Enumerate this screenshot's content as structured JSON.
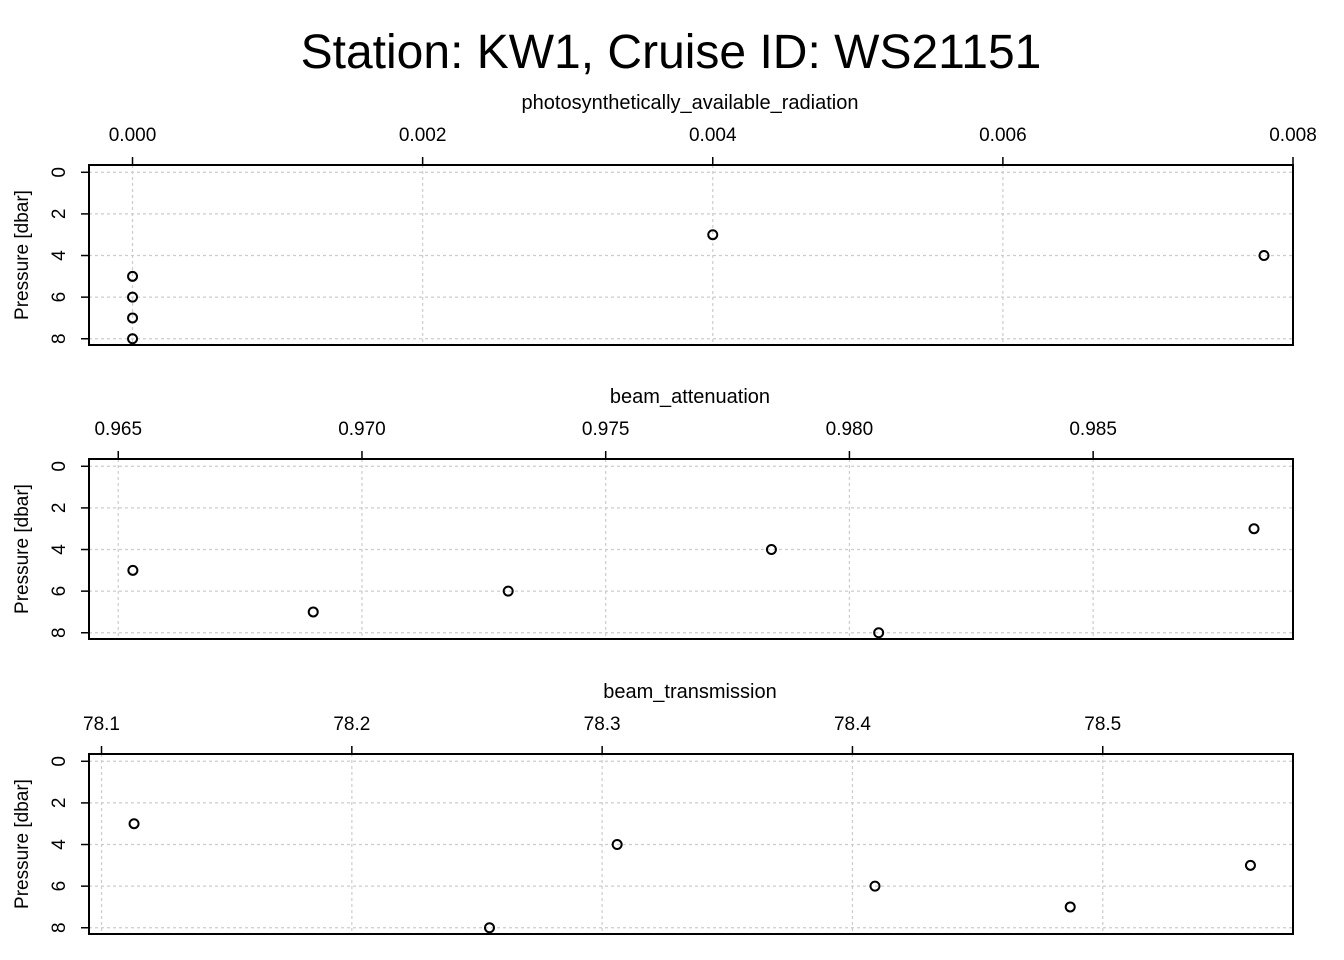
{
  "title": "Station: KW1, Cruise ID: WS21151",
  "chart_data": [
    {
      "type": "scatter",
      "title": "photosynthetically_available_radiation",
      "ylabel": "Pressure [dbar]",
      "xlabel": "",
      "x_ticks": [
        "0.000",
        "0.002",
        "0.004",
        "0.006",
        "0.008"
      ],
      "y_ticks": [
        "0",
        "2",
        "4",
        "6",
        "8"
      ],
      "xlim": [
        -0.0003,
        0.008
      ],
      "ylim_reversed": [
        -0.35,
        8.3
      ],
      "grid": true,
      "points": [
        {
          "x": 0.004,
          "y": 3
        },
        {
          "x": 0.0078,
          "y": 4
        },
        {
          "x": 0.0,
          "y": 5
        },
        {
          "x": 0.0,
          "y": 6
        },
        {
          "x": 0.0,
          "y": 7
        },
        {
          "x": 0.0,
          "y": 8
        }
      ]
    },
    {
      "type": "scatter",
      "title": "beam_attenuation",
      "ylabel": "Pressure [dbar]",
      "xlabel": "",
      "x_ticks": [
        "0.965",
        "0.970",
        "0.975",
        "0.980",
        "0.985"
      ],
      "y_ticks": [
        "0",
        "2",
        "4",
        "6",
        "8"
      ],
      "xlim": [
        0.9644,
        0.9891
      ],
      "ylim_reversed": [
        -0.35,
        8.3
      ],
      "grid": true,
      "points": [
        {
          "x": 0.9883,
          "y": 3
        },
        {
          "x": 0.9784,
          "y": 4
        },
        {
          "x": 0.9653,
          "y": 5
        },
        {
          "x": 0.973,
          "y": 6
        },
        {
          "x": 0.969,
          "y": 7
        },
        {
          "x": 0.9806,
          "y": 8
        }
      ]
    },
    {
      "type": "scatter",
      "title": "beam_transmission",
      "ylabel": "Pressure [dbar]",
      "xlabel": "",
      "x_ticks": [
        "78.1",
        "78.2",
        "78.3",
        "78.4",
        "78.5"
      ],
      "y_ticks": [
        "0",
        "2",
        "4",
        "6",
        "8"
      ],
      "xlim": [
        78.095,
        78.576
      ],
      "ylim_reversed": [
        -0.35,
        8.3
      ],
      "grid": true,
      "points": [
        {
          "x": 78.113,
          "y": 3
        },
        {
          "x": 78.306,
          "y": 4
        },
        {
          "x": 78.559,
          "y": 5
        },
        {
          "x": 78.409,
          "y": 6
        },
        {
          "x": 78.487,
          "y": 7
        },
        {
          "x": 78.255,
          "y": 8
        }
      ]
    }
  ]
}
